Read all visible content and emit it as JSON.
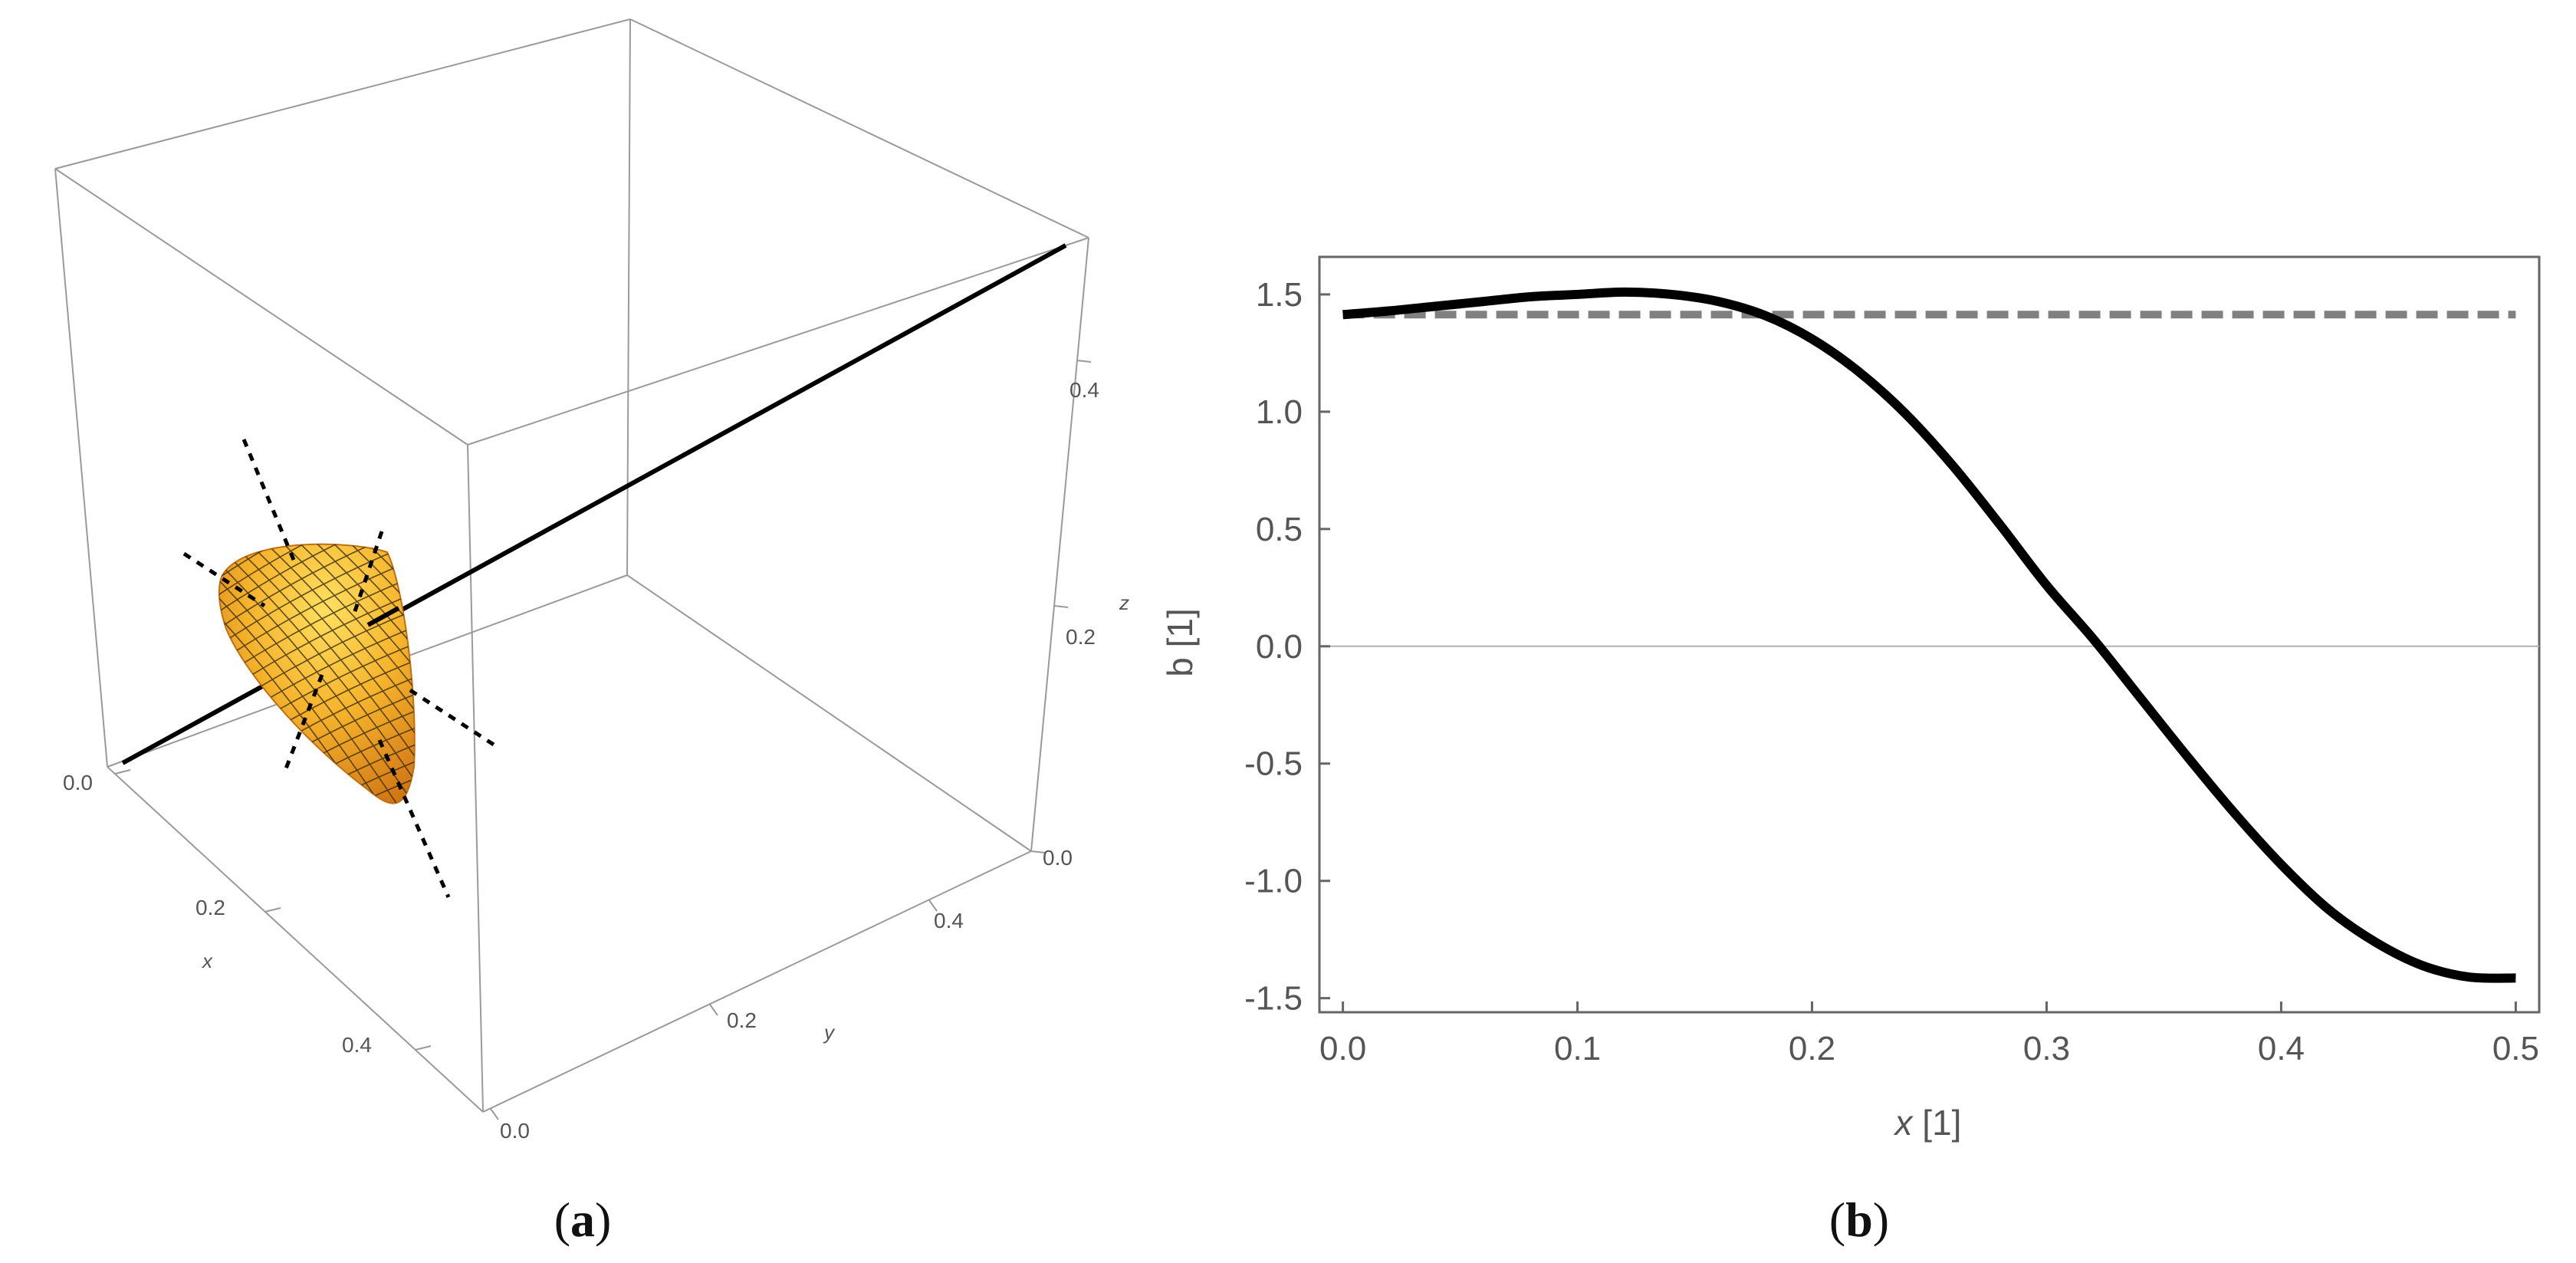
{
  "panel_a": {
    "label_open": "(",
    "label_letter": "a",
    "label_close": ")",
    "axes": {
      "x": {
        "label": "x",
        "ticks": [
          "0.0",
          "0.2",
          "0.4"
        ]
      },
      "y": {
        "label": "y",
        "ticks": [
          "0.0",
          "0.2",
          "0.4"
        ]
      },
      "z": {
        "label": "z",
        "ticks": [
          "0.0",
          "0.2",
          "0.4"
        ]
      }
    },
    "colors": {
      "surface": "#f0a020",
      "mesh": "#3a2a10",
      "line": "#000000",
      "box": "#9a9a9a"
    }
  },
  "panel_b": {
    "label_open": "(",
    "label_letter": "b",
    "label_close": ")"
  },
  "chart_data": [
    {
      "type": "scatter",
      "panel": "a",
      "projection": "3d",
      "xlabel": "x",
      "ylabel": "y",
      "zlabel": "z",
      "xlim": [
        0,
        0.5
      ],
      "ylim": [
        0,
        0.5
      ],
      "zlim": [
        0,
        0.5
      ],
      "xticks": [
        "0.0",
        "0.2",
        "0.4"
      ],
      "yticks": [
        "0.0",
        "0.2",
        "0.4"
      ],
      "zticks": [
        "0.0",
        "0.2",
        "0.4"
      ],
      "objects": [
        {
          "kind": "surface",
          "color": "#f0a020",
          "mesh": true
        },
        {
          "kind": "line",
          "style": "solid",
          "color": "#000000"
        },
        {
          "kind": "line",
          "style": "dotted",
          "color": "#000000",
          "count": 6
        }
      ]
    },
    {
      "type": "line",
      "panel": "b",
      "xlabel_italic": "x",
      "xlabel_unit": " [1]",
      "ylabel": "b [1]",
      "xlim": [
        -0.01,
        0.51
      ],
      "ylim": [
        -1.56,
        1.66
      ],
      "xticks": [
        "0.0",
        "0.1",
        "0.2",
        "0.3",
        "0.4",
        "0.5"
      ],
      "yticks": [
        "1.5",
        "1.0",
        "0.5",
        "0.0",
        "-0.5",
        "-1.0",
        "-1.5"
      ],
      "grid": false,
      "legend": "none",
      "series": [
        {
          "style": "solid",
          "color": "#000000",
          "x": [
            0.0,
            0.02,
            0.04,
            0.06,
            0.08,
            0.1,
            0.12,
            0.14,
            0.16,
            0.18,
            0.2,
            0.22,
            0.24,
            0.26,
            0.28,
            0.3,
            0.32,
            0.34,
            0.36,
            0.38,
            0.4,
            0.42,
            0.44,
            0.46,
            0.48,
            0.5
          ],
          "y": [
            1.414,
            1.43,
            1.45,
            1.47,
            1.49,
            1.5,
            1.51,
            1.5,
            1.47,
            1.41,
            1.31,
            1.17,
            0.99,
            0.77,
            0.52,
            0.26,
            0.03,
            -0.22,
            -0.47,
            -0.71,
            -0.93,
            -1.12,
            -1.26,
            -1.36,
            -1.41,
            -1.414
          ]
        },
        {
          "style": "dashed",
          "color": "#808080",
          "x": [
            0.0,
            0.5
          ],
          "y": [
            1.414,
            1.414
          ]
        }
      ]
    }
  ]
}
